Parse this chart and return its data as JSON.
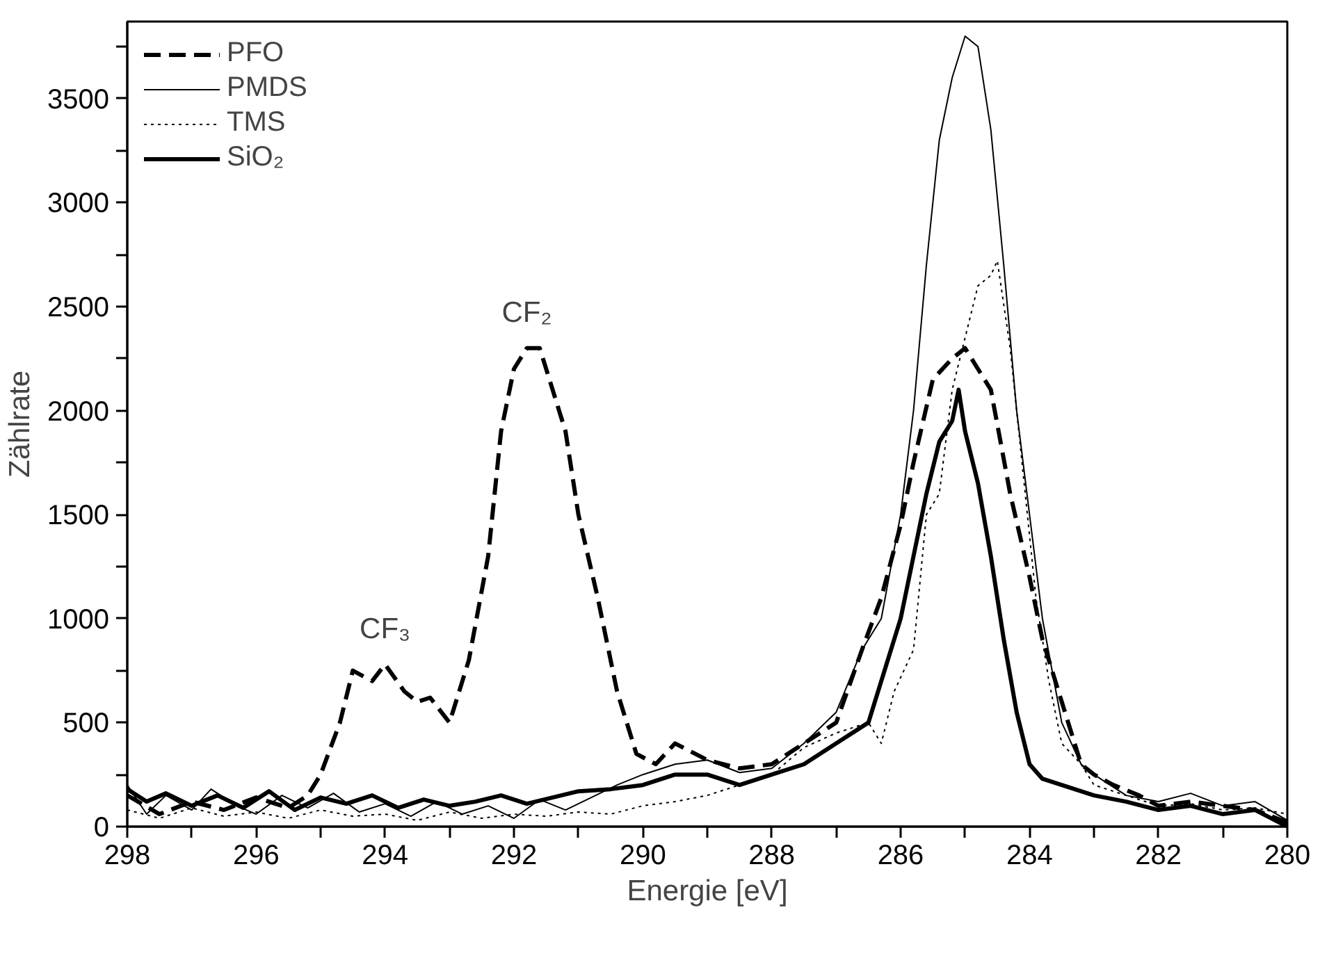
{
  "chart_data": {
    "type": "line",
    "xlabel": "Energie [eV]",
    "ylabel": "Zählrate",
    "xlim": [
      298,
      280
    ],
    "ylim": [
      0,
      3870
    ],
    "xticks": [
      298,
      {
        "value": 297,
        "label": null
      },
      296,
      {
        "value": 295,
        "label": null
      },
      294,
      {
        "value": 293,
        "label": null
      },
      292,
      {
        "value": 291,
        "label": null
      },
      290,
      {
        "value": 289,
        "label": null
      },
      288,
      {
        "value": 287,
        "label": null
      },
      286,
      {
        "value": 285,
        "label": null
      },
      284,
      {
        "value": 283,
        "label": null
      },
      282,
      {
        "value": 281,
        "label": null
      },
      280
    ],
    "yticks": [
      0,
      {
        "value": 250,
        "label": null
      },
      500,
      {
        "value": 750,
        "label": null
      },
      1000,
      {
        "value": 1250,
        "label": null
      },
      1500,
      {
        "value": 1750,
        "label": null
      },
      2000,
      {
        "value": 2250,
        "label": null
      },
      2500,
      {
        "value": 2750,
        "label": null
      },
      3000,
      {
        "value": 3250,
        "label": null
      },
      3500,
      {
        "value": 3750,
        "label": null
      }
    ],
    "grid": false,
    "legend": "top left",
    "marker": "none",
    "annotations": [
      {
        "text": "CF₂",
        "x": 291.8,
        "y": 2300
      },
      {
        "text": "CF₃",
        "x": 294,
        "y": 780
      }
    ],
    "series": [
      {
        "name": "PFO",
        "color": "#000000",
        "line_style": "dashed",
        "x": [
          298,
          297.5,
          297,
          296.5,
          296,
          295.5,
          295.2,
          295,
          294.7,
          294.5,
          294.2,
          294,
          293.7,
          293.5,
          293.3,
          293,
          292.7,
          292.4,
          292.2,
          292,
          291.8,
          291.6,
          291.4,
          291.2,
          291,
          290.7,
          290.4,
          290.1,
          289.8,
          289.5,
          289,
          288.5,
          288,
          287.5,
          287,
          286.6,
          286.3,
          286,
          285.8,
          285.5,
          285.2,
          285,
          284.8,
          284.6,
          284.3,
          284,
          283.8,
          283.5,
          283.2,
          283,
          282.7,
          282.3,
          282,
          281.5,
          281,
          280.5,
          280
        ],
        "values": [
          150,
          60,
          120,
          80,
          140,
          90,
          150,
          250,
          500,
          750,
          700,
          780,
          650,
          600,
          620,
          500,
          800,
          1300,
          1900,
          2200,
          2300,
          2300,
          2100,
          1900,
          1500,
          1100,
          650,
          350,
          300,
          400,
          320,
          280,
          300,
          400,
          500,
          850,
          1100,
          1450,
          1750,
          2150,
          2250,
          2300,
          2200,
          2100,
          1600,
          1200,
          900,
          600,
          300,
          250,
          200,
          150,
          100,
          120,
          100,
          80,
          20
        ]
      },
      {
        "name": "PMDS",
        "color": "#000000",
        "line_style": "solid",
        "x": [
          298,
          297.7,
          297.4,
          297,
          296.7,
          296.3,
          296,
          295.6,
          295.2,
          294.8,
          294.4,
          294,
          293.6,
          293.2,
          292.8,
          292.4,
          292,
          291.6,
          291.2,
          290.8,
          290.4,
          290,
          289.5,
          289,
          288.5,
          288,
          287.5,
          287,
          286.6,
          286.3,
          286,
          285.8,
          285.6,
          285.4,
          285.2,
          285,
          284.8,
          284.6,
          284.4,
          284.2,
          284,
          283.8,
          283.5,
          283.2,
          283,
          282.5,
          282,
          281.5,
          281,
          280.5,
          280
        ],
        "values": [
          200,
          60,
          150,
          80,
          180,
          100,
          60,
          150,
          90,
          160,
          70,
          110,
          50,
          120,
          60,
          100,
          40,
          130,
          80,
          140,
          200,
          250,
          300,
          320,
          260,
          280,
          400,
          550,
          850,
          1000,
          1500,
          2000,
          2700,
          3300,
          3600,
          3800,
          3750,
          3350,
          2700,
          2000,
          1500,
          1000,
          500,
          300,
          250,
          150,
          120,
          160,
          100,
          120,
          30
        ]
      },
      {
        "name": "TMS",
        "color": "#000000",
        "line_style": "dotted",
        "x": [
          298,
          297.5,
          297,
          296.5,
          296,
          295.5,
          295,
          294.5,
          294,
          293.5,
          293,
          292.5,
          292,
          291.5,
          291,
          290.5,
          290,
          289.5,
          289,
          288.5,
          288,
          287.5,
          287,
          286.5,
          286.3,
          286.1,
          285.8,
          285.6,
          285.4,
          285.2,
          285,
          284.8,
          284.6,
          284.5,
          284.3,
          284.1,
          283.9,
          283.7,
          283.5,
          283.2,
          283,
          282.5,
          282,
          281.5,
          281,
          280.5,
          280
        ],
        "values": [
          80,
          40,
          90,
          50,
          70,
          40,
          80,
          50,
          60,
          30,
          70,
          40,
          60,
          50,
          70,
          60,
          100,
          120,
          150,
          200,
          250,
          380,
          450,
          500,
          400,
          650,
          850,
          1500,
          1600,
          2100,
          2350,
          2600,
          2650,
          2720,
          2300,
          1700,
          1100,
          700,
          400,
          300,
          200,
          150,
          100,
          110,
          80,
          90,
          60
        ]
      },
      {
        "name": "SiO₂",
        "color": "#000000",
        "line_style": "solid",
        "x": [
          298,
          297.7,
          297.4,
          297,
          296.6,
          296.2,
          295.8,
          295.4,
          295,
          294.6,
          294.2,
          293.8,
          293.4,
          293,
          292.6,
          292.2,
          291.8,
          291.4,
          291,
          290.5,
          290,
          289.5,
          289,
          288.5,
          288,
          287.5,
          287,
          286.5,
          286.2,
          286,
          285.8,
          285.6,
          285.4,
          285.2,
          285.1,
          285,
          284.8,
          284.6,
          284.4,
          284.2,
          284,
          283.8,
          283.5,
          283,
          282.5,
          282,
          281.5,
          281,
          280.5,
          280
        ],
        "values": [
          180,
          120,
          160,
          100,
          150,
          90,
          170,
          80,
          140,
          110,
          150,
          90,
          130,
          100,
          120,
          150,
          110,
          140,
          170,
          180,
          200,
          250,
          250,
          200,
          250,
          300,
          400,
          500,
          800,
          1000,
          1300,
          1600,
          1850,
          1950,
          2100,
          1900,
          1650,
          1300,
          900,
          550,
          300,
          230,
          200,
          150,
          120,
          80,
          100,
          60,
          80,
          0
        ]
      }
    ]
  }
}
